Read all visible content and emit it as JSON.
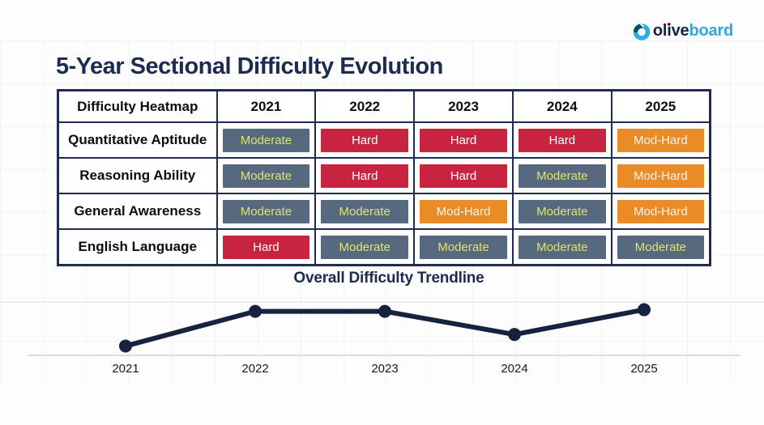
{
  "logo": {
    "olive_ol": "ol",
    "olive_i": "i",
    "olive_ve": "ve",
    "board": "board",
    "brand_navy": "#12233f",
    "brand_blue": "#29abe2",
    "i_dot_red": "#e5232e"
  },
  "title": "5-Year Sectional Difficulty Evolution",
  "heatmap": {
    "columns": [
      "Difficulty Heatmap",
      "2021",
      "2022",
      "2023",
      "2024",
      "2025"
    ],
    "rows": [
      {
        "label": "Quantitative Aptitude",
        "cells": [
          "Moderate",
          "Hard",
          "Hard",
          "Hard",
          "Mod-Hard"
        ]
      },
      {
        "label": "Reasoning Ability",
        "cells": [
          "Moderate",
          "Hard",
          "Hard",
          "Moderate",
          "Mod-Hard"
        ]
      },
      {
        "label": "General Awareness",
        "cells": [
          "Moderate",
          "Moderate",
          "Mod-Hard",
          "Moderate",
          "Mod-Hard"
        ]
      },
      {
        "label": "English Language",
        "cells": [
          "Hard",
          "Moderate",
          "Moderate",
          "Moderate",
          "Moderate"
        ]
      }
    ],
    "palette": {
      "Moderate": {
        "bg": "#56697f",
        "text": "#dde56d"
      },
      "Hard": {
        "bg": "#c82440",
        "text": "#ffffff"
      },
      "Mod-Hard": {
        "bg": "#e98b27",
        "text": "#faf4ea"
      }
    }
  },
  "chart_data": {
    "type": "line",
    "title": "Overall Difficulty Trendline",
    "x": [
      "2021",
      "2022",
      "2023",
      "2024",
      "2025"
    ],
    "values": [
      0.17,
      0.8,
      0.8,
      0.38,
      0.83
    ],
    "value_scale": "relative overall difficulty, estimated as fraction of plot height (y-axis unlabeled in source; 2021 lowest, 2022-2023 high plateau, 2024 dip, 2025 highest)",
    "xlabel": "",
    "ylabel": "",
    "line_color": "#17233e",
    "marker_color": "#17233e",
    "grid": true,
    "legend_position": "none"
  }
}
